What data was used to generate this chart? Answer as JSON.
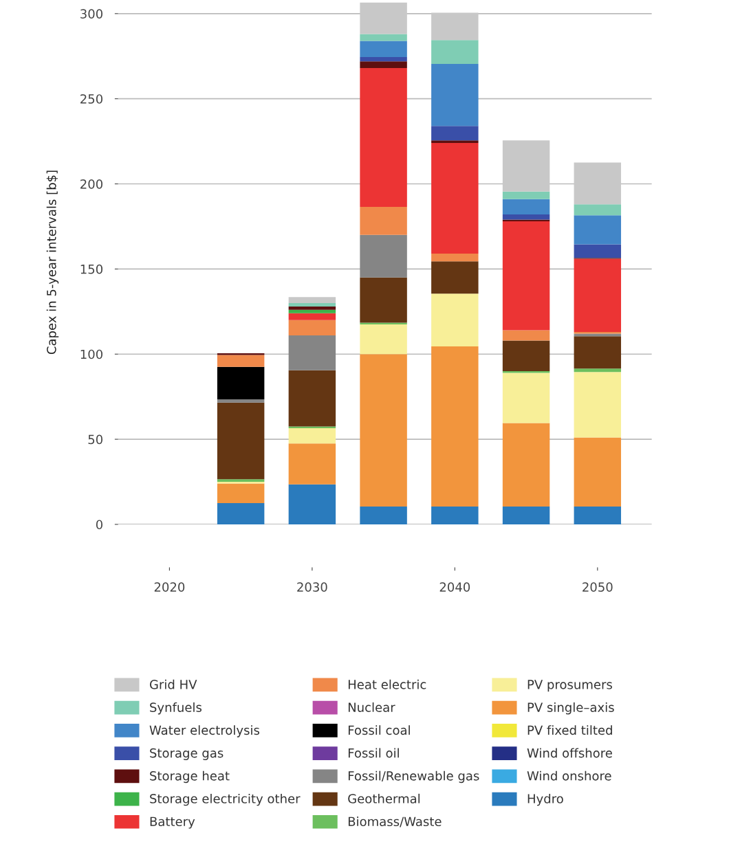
{
  "chart_data": {
    "type": "bar",
    "stacked": true,
    "ylabel": "Capex in 5-year intervals [b$]",
    "x": [
      2025,
      2030,
      2035,
      2040,
      2045,
      2050
    ],
    "xlim": [
      2016.4,
      2053.8
    ],
    "xticks": [
      2020,
      2030,
      2040,
      2050
    ],
    "ylim": [
      0,
      308
    ],
    "yticks": [
      0,
      50,
      100,
      150,
      200,
      250,
      300
    ],
    "grid": "y",
    "legend": "bottom",
    "series": [
      {
        "name": "Hydro",
        "color": "#2a7bbd",
        "values": [
          12.5,
          23.5,
          10.5,
          10.5,
          10.5,
          10.5
        ]
      },
      {
        "name": "Wind onshore",
        "color": "#3aaae2",
        "values": [
          0,
          0,
          0,
          0,
          0,
          0
        ]
      },
      {
        "name": "Wind offshore",
        "color": "#242f86",
        "values": [
          0,
          0,
          0,
          0,
          0,
          0
        ]
      },
      {
        "name": "PV fixed tilted",
        "color": "#f1e83a",
        "values": [
          0,
          0,
          0,
          0,
          0,
          0
        ]
      },
      {
        "name": "PV single–axis",
        "color": "#f2953d",
        "values": [
          11.5,
          24,
          89.5,
          94,
          49,
          40.5
        ]
      },
      {
        "name": "PV prosumers",
        "color": "#f8ef98",
        "values": [
          1,
          9,
          17.5,
          31,
          29.5,
          38.5
        ]
      },
      {
        "name": "Biomass/Waste",
        "color": "#6cbf5e",
        "values": [
          1.5,
          1,
          1,
          0,
          1,
          2
        ]
      },
      {
        "name": "Geothermal",
        "color": "#643613",
        "values": [
          45,
          33,
          26.5,
          19,
          18,
          19
        ]
      },
      {
        "name": "Fossil/Renewable gas",
        "color": "#858585",
        "values": [
          2,
          20.5,
          25,
          0,
          0,
          1.5
        ]
      },
      {
        "name": "Fossil oil",
        "color": "#6e3b9e",
        "values": [
          0,
          0,
          0,
          0,
          0,
          0
        ]
      },
      {
        "name": "Fossil coal",
        "color": "#000000",
        "values": [
          19,
          0,
          0,
          0,
          0,
          0
        ]
      },
      {
        "name": "Nuclear",
        "color": "#b84ea8",
        "values": [
          0,
          0,
          0,
          0,
          0,
          0
        ]
      },
      {
        "name": "Heat electric",
        "color": "#f0894a",
        "values": [
          7,
          9,
          16.5,
          4.5,
          6,
          1
        ]
      },
      {
        "name": "Battery",
        "color": "#ec3434",
        "values": [
          0,
          4,
          81.5,
          65,
          64,
          43
        ]
      },
      {
        "name": "Storage electricity other",
        "color": "#3db34a",
        "values": [
          0,
          2,
          0,
          0,
          0,
          0
        ]
      },
      {
        "name": "Storage heat",
        "color": "#5e0f0f",
        "values": [
          1,
          2,
          4,
          1.5,
          1,
          0.5
        ]
      },
      {
        "name": "Storage gas",
        "color": "#3a4fa8",
        "values": [
          0,
          0,
          2.5,
          8.5,
          3,
          8
        ]
      },
      {
        "name": "Water electrolysis",
        "color": "#4286c8",
        "values": [
          0,
          0,
          9.5,
          36.5,
          9,
          17
        ]
      },
      {
        "name": "Synfuels",
        "color": "#7fcdb4",
        "values": [
          0,
          2,
          4,
          14,
          4.5,
          6.5
        ]
      },
      {
        "name": "Grid HV",
        "color": "#c8c8c8",
        "values": [
          0,
          3.5,
          18.5,
          16,
          30,
          24.5
        ]
      }
    ]
  }
}
